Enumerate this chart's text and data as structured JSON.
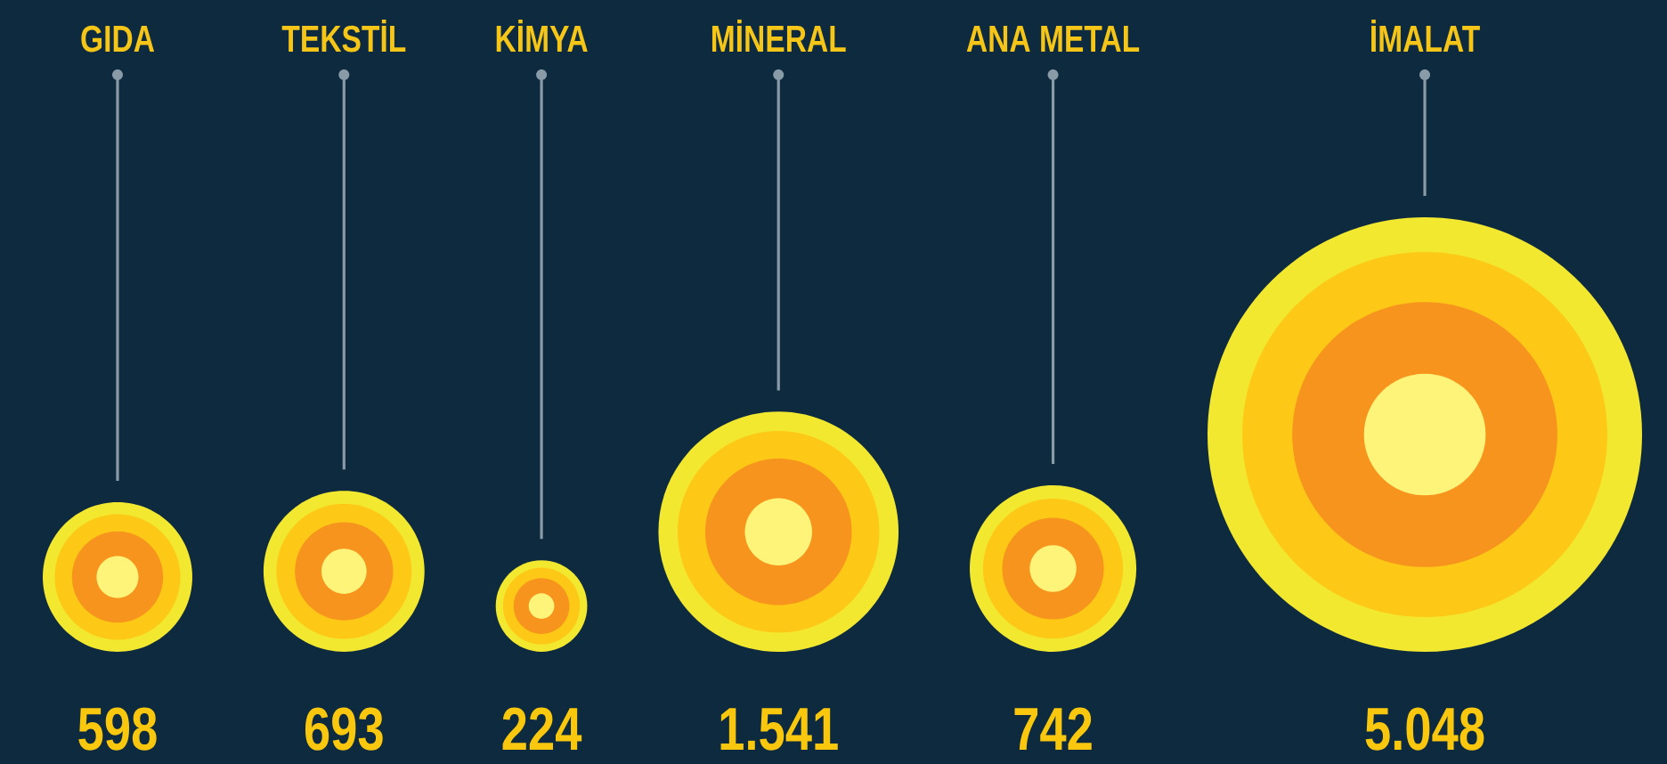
{
  "chart_data": {
    "type": "other",
    "categories": [
      "GIDA",
      "TEKSTİL",
      "KİMYA",
      "MİNERAL",
      "ANA METAL",
      "İMALAT"
    ],
    "values": [
      598,
      693,
      224,
      1541,
      742,
      5048
    ],
    "value_labels": [
      "598",
      "693",
      "224",
      "1.541",
      "742",
      "5.048"
    ],
    "color": "#f2e830"
  }
}
